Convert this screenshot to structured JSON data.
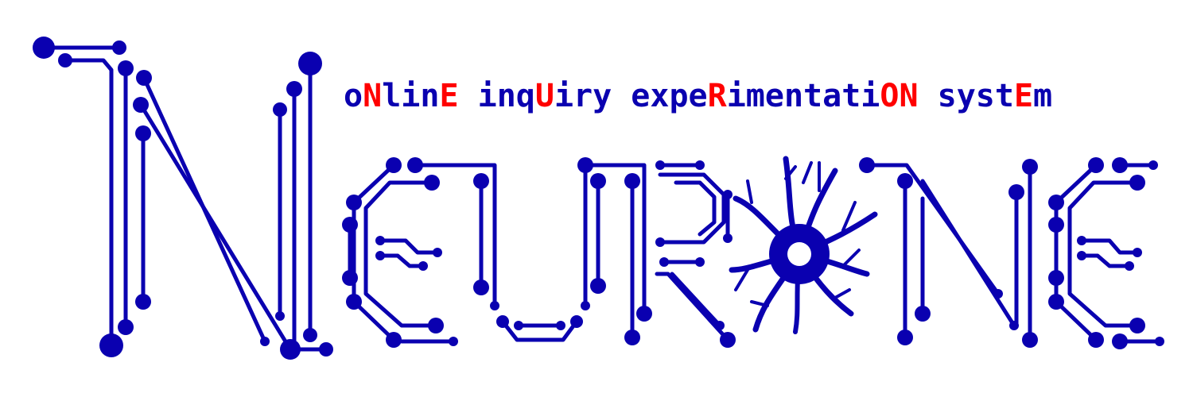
{
  "logo": {
    "name": "NEURONE",
    "colors": {
      "primary": "#0a00b0",
      "accent": "#ff0000",
      "background": "#ffffff"
    }
  },
  "tagline": {
    "segments": [
      {
        "text": "o",
        "hl": false
      },
      {
        "text": "N",
        "hl": true
      },
      {
        "text": "lin",
        "hl": false
      },
      {
        "text": "E",
        "hl": true
      },
      {
        "text": " inq",
        "hl": false
      },
      {
        "text": "U",
        "hl": true
      },
      {
        "text": "iry expe",
        "hl": false
      },
      {
        "text": "R",
        "hl": true
      },
      {
        "text": "imentati",
        "hl": false
      },
      {
        "text": "ON",
        "hl": true
      },
      {
        "text": " syst",
        "hl": false
      },
      {
        "text": "E",
        "hl": true
      },
      {
        "text": "m",
        "hl": false
      }
    ]
  }
}
